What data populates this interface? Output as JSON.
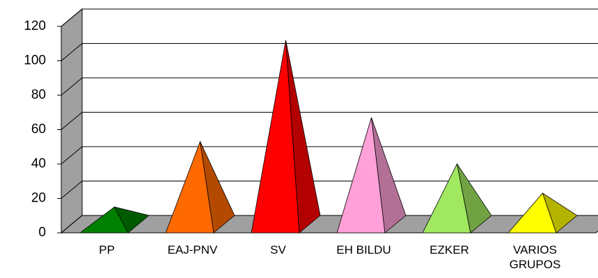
{
  "chart_data": {
    "type": "pyramid",
    "categories": [
      "PP",
      "EAJ-PNV",
      "SV",
      "EH BILDU",
      "EZKER",
      "VARIOS GRUPOS"
    ],
    "values": [
      10,
      48,
      107,
      62,
      35,
      18
    ],
    "colors": [
      "#008000",
      "#ff6a00",
      "#ff0000",
      "#ffa0d8",
      "#a0e860",
      "#ffff00"
    ],
    "ylim": [
      0,
      120
    ],
    "yticks": [
      0,
      20,
      40,
      60,
      80,
      100,
      120
    ],
    "grid": true
  }
}
